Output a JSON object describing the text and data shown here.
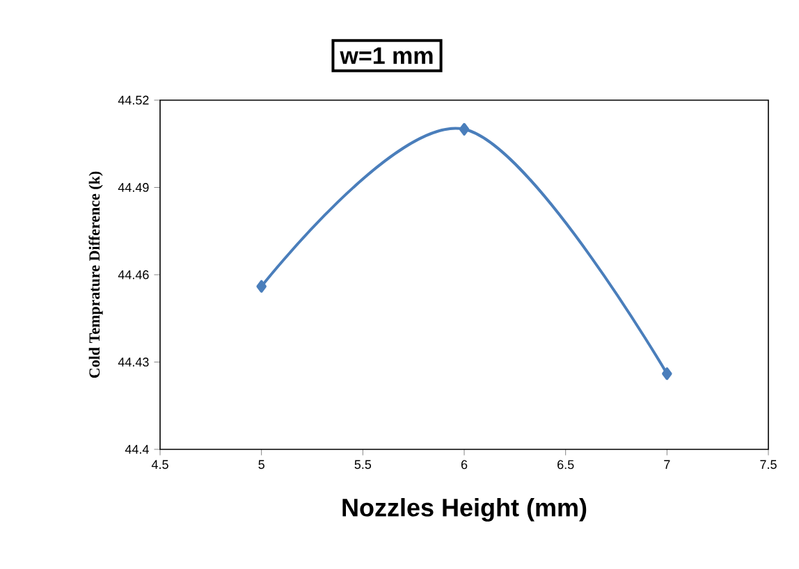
{
  "chart_data": {
    "type": "line",
    "title": "w=1 mm",
    "xlabel": "Nozzles Height (mm)",
    "ylabel": "Cold Temprature Difference (k)",
    "x": [
      5,
      6,
      7
    ],
    "series": [
      {
        "color": "#4a7ebb",
        "values": [
          44.456,
          44.51,
          44.426
        ]
      }
    ],
    "xlim": [
      4.5,
      7.5
    ],
    "ylim": [
      44.4,
      44.52
    ],
    "xticks": [
      4.5,
      5,
      5.5,
      6,
      6.5,
      7,
      7.5
    ],
    "yticks": [
      44.4,
      44.43,
      44.46,
      44.49,
      44.52
    ],
    "grid": false,
    "marker": "diamond",
    "line_style": "solid"
  }
}
